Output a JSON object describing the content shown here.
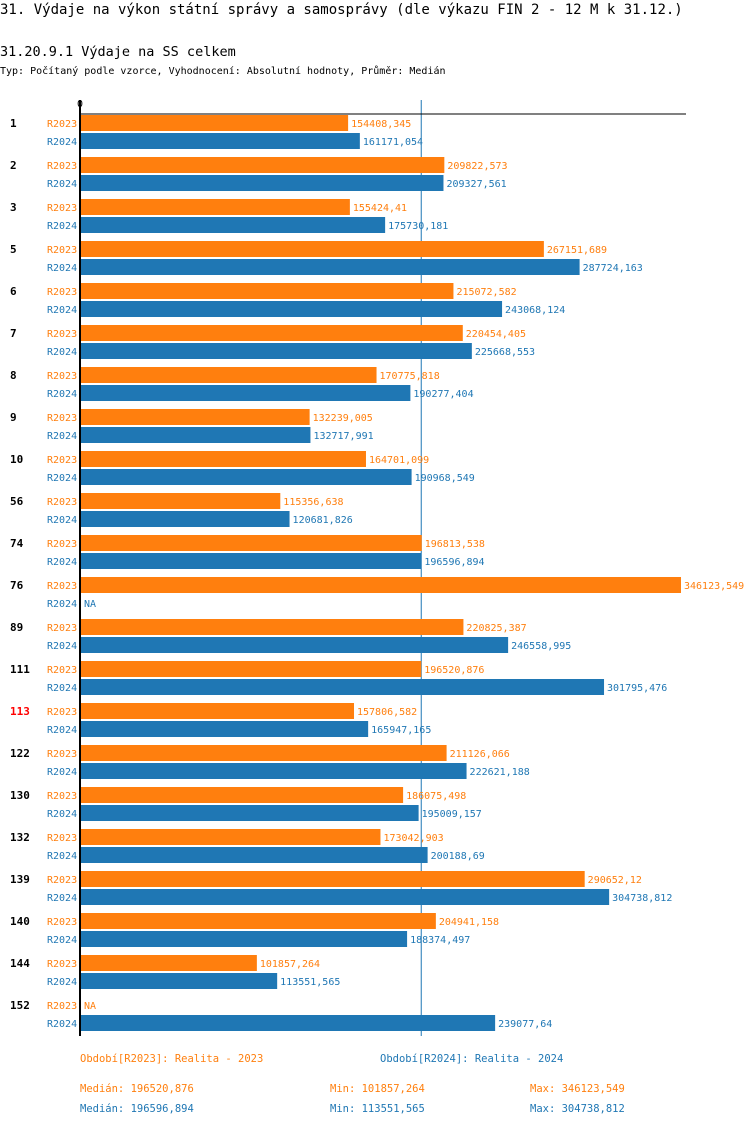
{
  "header": {
    "title": "31. Výdaje na výkon státní správy a samosprávy (dle výkazu FIN 2 - 12 M k 31.12.)",
    "subtitle": "31.20.9.1 Výdaje na SS celkem",
    "info": "Typ: Počítaný podle vzorce, Vyhodnocení: Absolutní hodnoty, Průměr: Medián"
  },
  "colors": {
    "R2023": "#ff7f0e",
    "R2024": "#1f77b4",
    "highlight": "#ff0000",
    "median_line": "#1f77b4"
  },
  "chart_data": {
    "type": "bar",
    "orientation": "horizontal",
    "axis_zero_label": "0",
    "xlim": [
      0,
      346123.549
    ],
    "grid": false,
    "highlighted_category": "113",
    "na_label": "NA",
    "categories": [
      "1",
      "2",
      "3",
      "5",
      "6",
      "7",
      "8",
      "9",
      "10",
      "56",
      "74",
      "76",
      "89",
      "111",
      "113",
      "122",
      "130",
      "132",
      "139",
      "140",
      "144",
      "152"
    ],
    "series": [
      {
        "name": "R2023",
        "values": [
          154408.345,
          209822.573,
          155424.41,
          267151.689,
          215072.582,
          220454.405,
          170775.818,
          132239.005,
          164701.099,
          115356.638,
          196813.538,
          346123.549,
          220825.387,
          196520.876,
          157806.582,
          211126.066,
          186075.498,
          173042.903,
          290652.12,
          204941.158,
          101857.264,
          null
        ]
      },
      {
        "name": "R2024",
        "values": [
          161171.054,
          209327.561,
          175730.181,
          287724.163,
          243068.124,
          225668.553,
          190277.404,
          132717.991,
          190968.549,
          120681.826,
          196596.894,
          null,
          246558.995,
          301795.476,
          165947.165,
          222621.188,
          195009.157,
          200188.69,
          304738.812,
          188374.497,
          113551.565,
          239077.64
        ]
      }
    ],
    "median_line_value": 196520.876
  },
  "legend": {
    "r2023": "Období[R2023]: Realita - 2023",
    "r2024": "Období[R2024]: Realita - 2024"
  },
  "stats": {
    "r2023": {
      "median": "Medián: 196520,876",
      "min": "Min: 101857,264",
      "max": "Max: 346123,549"
    },
    "r2024": {
      "median": "Medián: 196596,894",
      "min": "Min: 113551,565",
      "max": "Max: 304738,812"
    }
  }
}
